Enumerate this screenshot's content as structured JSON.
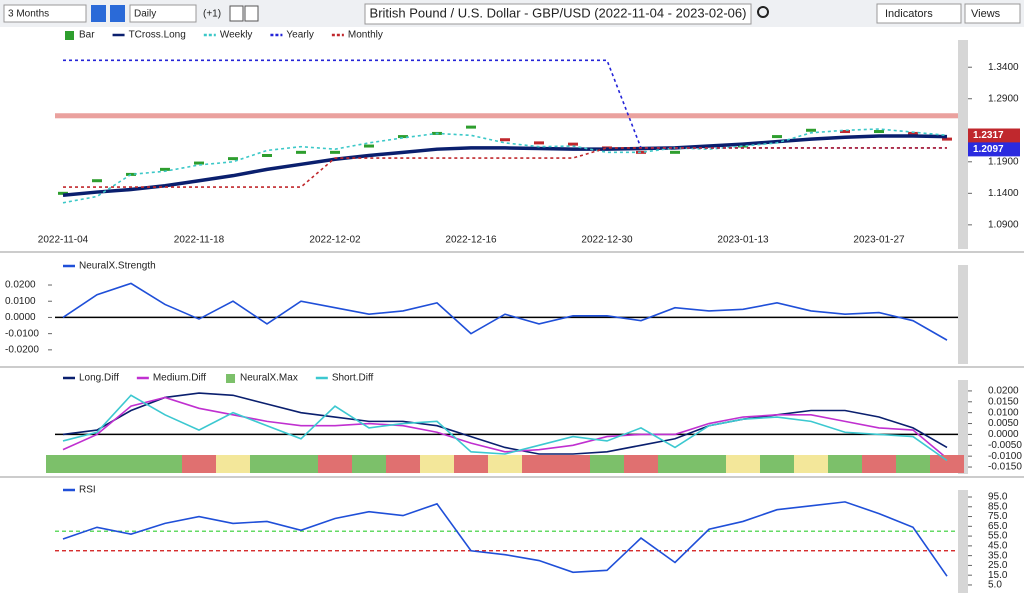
{
  "toolbar": {
    "period": "3 Months",
    "interval": "Daily",
    "offset": "(+1)",
    "title": "British Pound / U.S. Dollar - GBP/USD (2022-11-04 - 2023-02-06)",
    "indicators": "Indicators",
    "views": "Views"
  },
  "chart_data": [
    {
      "type": "line",
      "categories": [
        "2022-11-04",
        null,
        null,
        null,
        "2022-11-18",
        null,
        null,
        null,
        "2022-12-02",
        null,
        null,
        null,
        "2022-12-16",
        null,
        null,
        null,
        "2022-12-30",
        null,
        null,
        null,
        "2023-01-13",
        null,
        null,
        null,
        "2023-01-27",
        null,
        null
      ],
      "ylim": [
        1.085,
        1.38
      ],
      "yticks": [
        {
          "value": 1.34,
          "label": "1.3400"
        },
        {
          "value": 1.29,
          "label": "1.2900"
        },
        {
          "value": 1.19,
          "label": "1.1900"
        },
        {
          "value": 1.14,
          "label": "1.1400"
        },
        {
          "value": 1.09,
          "label": "1.0900"
        }
      ],
      "zones": [
        {
          "ymin": 1.259,
          "ymax": 1.267,
          "color": "#d9534f"
        }
      ],
      "price_labels": [
        {
          "value": 1.2317,
          "color": "#c0282d"
        },
        {
          "value": 1.2097,
          "color": "#2a2adf"
        }
      ],
      "series": [
        {
          "name": "Bar",
          "style": "bar",
          "up_color": "#2e9e2e",
          "down_color": "#c0282d",
          "values": [
            1.14,
            1.16,
            1.17,
            1.178,
            1.188,
            1.195,
            1.2,
            1.205,
            1.205,
            1.215,
            1.23,
            1.235,
            1.245,
            1.225,
            1.22,
            1.218,
            1.212,
            1.205,
            1.205,
            1.215,
            1.215,
            1.23,
            1.24,
            1.238,
            1.238,
            1.235,
            1.226
          ]
        },
        {
          "name": "TCross.Long",
          "style": "solid",
          "color": "#0a1f6e",
          "values": [
            1.137,
            1.142,
            1.146,
            1.152,
            1.16,
            1.168,
            1.178,
            1.186,
            1.194,
            1.2,
            1.205,
            1.21,
            1.212,
            1.212,
            1.211,
            1.21,
            1.21,
            1.211,
            1.212,
            1.215,
            1.218,
            1.222,
            1.226,
            1.229,
            1.231,
            1.231,
            1.23
          ]
        },
        {
          "name": "Weekly",
          "style": "dashed",
          "color": "#3cc8c8",
          "values": [
            1.125,
            1.135,
            1.17,
            1.175,
            1.185,
            1.19,
            1.208,
            1.214,
            1.21,
            1.22,
            1.228,
            1.235,
            1.232,
            1.22,
            1.214,
            1.215,
            1.205,
            1.205,
            1.212,
            1.21,
            1.215,
            1.22,
            1.236,
            1.24,
            1.242,
            1.237,
            1.232
          ]
        },
        {
          "name": "Yearly",
          "style": "dashed",
          "color": "#2424d8",
          "values": [
            1.351,
            1.351,
            1.351,
            1.351,
            1.351,
            1.351,
            1.351,
            1.351,
            1.351,
            1.351,
            1.351,
            1.351,
            1.351,
            1.351,
            1.351,
            1.351,
            1.351,
            1.212,
            1.212,
            1.212,
            1.212,
            1.212,
            1.212,
            1.212,
            1.212,
            1.212,
            1.212
          ]
        },
        {
          "name": "Monthly",
          "style": "dashed",
          "color": "#c0282d",
          "values": [
            1.15,
            1.15,
            1.15,
            1.15,
            1.15,
            1.15,
            1.15,
            1.15,
            1.196,
            1.196,
            1.196,
            1.196,
            1.196,
            1.196,
            1.196,
            1.196,
            1.212,
            1.212,
            1.212,
            1.212,
            1.212,
            1.212,
            1.212,
            1.212,
            1.212,
            1.212,
            1.212
          ]
        }
      ]
    },
    {
      "type": "line",
      "ylim": [
        -0.0275,
        0.0305
      ],
      "zero_line": true,
      "yticks": [
        {
          "value": 0.02,
          "label": "0.0200"
        },
        {
          "value": 0.01,
          "label": "0.0100"
        },
        {
          "value": 0,
          "label": "0.0000"
        },
        {
          "value": -0.01,
          "label": "-0.0100"
        },
        {
          "value": -0.02,
          "label": "-0.0200"
        }
      ],
      "series": [
        {
          "name": "NeuralX.Strength",
          "style": "solid",
          "color": "#1f4fd8",
          "values": [
            0.0,
            0.014,
            0.021,
            0.008,
            -0.001,
            0.01,
            -0.004,
            0.01,
            0.006,
            0.002,
            0.004,
            0.009,
            -0.01,
            0.002,
            -0.004,
            0.001,
            0.001,
            -0.002,
            0.006,
            0.004,
            0.005,
            0.009,
            0.004,
            0.002,
            0.003,
            -0.002,
            -0.014
          ]
        }
      ]
    },
    {
      "type": "line",
      "ylim": [
        -0.0182,
        0.0287
      ],
      "zero_line": true,
      "yticks": [
        {
          "value": 0.02,
          "label": "0.0200"
        },
        {
          "value": 0.015,
          "label": "0.0150"
        },
        {
          "value": 0.01,
          "label": "0.0100"
        },
        {
          "value": 0.005,
          "label": "0.0050"
        },
        {
          "value": 0,
          "label": "0.0000"
        },
        {
          "value": -0.005,
          "label": "-0.0050"
        },
        {
          "value": -0.01,
          "label": "-0.0100"
        },
        {
          "value": -0.015,
          "label": "-0.0150"
        }
      ],
      "series": [
        {
          "name": "Long.Diff",
          "style": "solid",
          "color": "#0a1f6e",
          "values": [
            0.0,
            0.002,
            0.011,
            0.017,
            0.019,
            0.018,
            0.014,
            0.01,
            0.008,
            0.006,
            0.006,
            0.004,
            -0.001,
            -0.006,
            -0.009,
            -0.009,
            -0.008,
            -0.005,
            -0.002,
            0.004,
            0.007,
            0.009,
            0.011,
            0.011,
            0.008,
            0.003,
            -0.006
          ]
        },
        {
          "name": "Medium.Diff",
          "style": "solid",
          "color": "#c030d0",
          "values": [
            -0.007,
            0.0,
            0.013,
            0.017,
            0.012,
            0.009,
            0.006,
            0.004,
            0.004,
            0.005,
            0.004,
            0.001,
            -0.004,
            -0.008,
            -0.007,
            -0.005,
            -0.001,
            0.0,
            0.0,
            0.005,
            0.008,
            0.009,
            0.009,
            0.006,
            0.003,
            0.002,
            -0.011
          ]
        },
        {
          "name": "NeuralX.Max",
          "style": "strip",
          "colors": [
            "#7cc06a",
            "#7cc06a",
            "#7cc06a",
            "#7cc06a",
            "#e07070",
            "#f3e79a",
            "#7cc06a",
            "#7cc06a",
            "#e07070",
            "#7cc06a",
            "#e07070",
            "#f3e79a",
            "#e07070",
            "#f3e79a",
            "#e07070",
            "#e07070",
            "#7cc06a",
            "#e07070",
            "#7cc06a",
            "#7cc06a",
            "#f3e79a",
            "#7cc06a",
            "#f3e79a",
            "#7cc06a",
            "#e07070",
            "#7cc06a",
            "#e07070"
          ]
        },
        {
          "name": "Short.Diff",
          "style": "solid",
          "color": "#3cc8d0",
          "values": [
            -0.003,
            0.001,
            0.018,
            0.009,
            0.002,
            0.01,
            0.004,
            -0.002,
            0.013,
            0.003,
            0.005,
            0.006,
            -0.008,
            -0.009,
            -0.005,
            -0.001,
            -0.003,
            0.003,
            -0.006,
            0.004,
            0.007,
            0.008,
            0.006,
            0.001,
            0.0,
            -0.001,
            -0.012
          ]
        }
      ]
    },
    {
      "type": "line",
      "ylim": [
        -2.2,
        108.3
      ],
      "yticks": [
        {
          "value": 95,
          "label": "95.0"
        },
        {
          "value": 85,
          "label": "85.0"
        },
        {
          "value": 75,
          "label": "75.0"
        },
        {
          "value": 65,
          "label": "65.0"
        },
        {
          "value": 55,
          "label": "55.0"
        },
        {
          "value": 45,
          "label": "45.0"
        },
        {
          "value": 35,
          "label": "35.0"
        },
        {
          "value": 25,
          "label": "25.0"
        },
        {
          "value": 15,
          "label": "15.0"
        },
        {
          "value": 5,
          "label": "5.0"
        }
      ],
      "levels": [
        {
          "value": 60,
          "color": "#32cd32"
        },
        {
          "value": 40,
          "color": "#d01010"
        }
      ],
      "series": [
        {
          "name": "RSI",
          "style": "solid",
          "color": "#1f4fd8",
          "values": [
            52,
            64,
            57,
            68,
            75,
            68,
            70,
            61,
            73,
            80,
            76,
            88,
            40,
            36,
            30,
            18,
            20,
            53,
            28,
            62,
            70,
            82,
            86,
            90,
            78,
            64,
            14
          ]
        }
      ]
    }
  ]
}
